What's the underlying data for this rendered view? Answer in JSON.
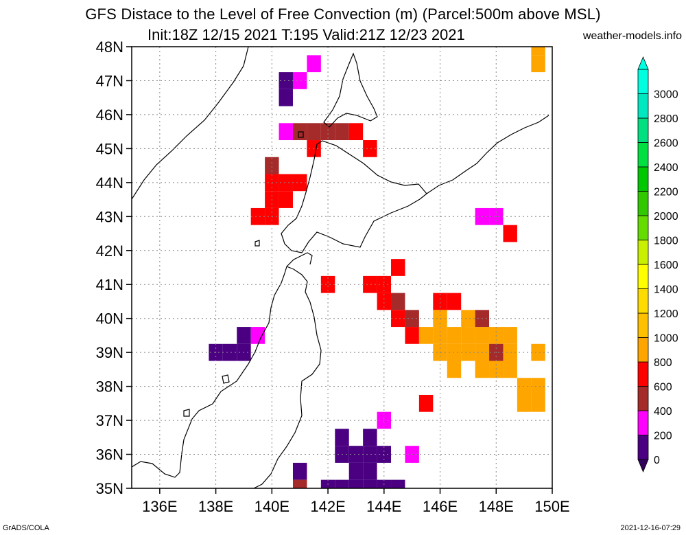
{
  "header": {
    "title_line1": "GFS Distace to the Level of Free Convection (m) (Parcel:500m above MSL)",
    "title_line2": "Init:18Z 12/15 2021 T:195 Valid:21Z 12/23 2021",
    "site": "weather-models.info"
  },
  "footer": {
    "left": "GrADS/COLA",
    "right": "2021-12-16-07:29"
  },
  "map": {
    "lon_range": [
      135,
      150
    ],
    "lat_range": [
      35,
      48
    ],
    "lon_ticks": [
      {
        "value": 136,
        "label": "136E"
      },
      {
        "value": 138,
        "label": "138E"
      },
      {
        "value": 140,
        "label": "140E"
      },
      {
        "value": 142,
        "label": "142E"
      },
      {
        "value": 144,
        "label": "144E"
      },
      {
        "value": 146,
        "label": "146E"
      },
      {
        "value": 148,
        "label": "148E"
      },
      {
        "value": 150,
        "label": "150E"
      }
    ],
    "lat_ticks": [
      {
        "value": 35,
        "label": "35N"
      },
      {
        "value": 36,
        "label": "36N"
      },
      {
        "value": 37,
        "label": "37N"
      },
      {
        "value": 38,
        "label": "38N"
      },
      {
        "value": 39,
        "label": "39N"
      },
      {
        "value": 40,
        "label": "40N"
      },
      {
        "value": 41,
        "label": "41N"
      },
      {
        "value": 42,
        "label": "42N"
      },
      {
        "value": 43,
        "label": "43N"
      },
      {
        "value": 44,
        "label": "44N"
      },
      {
        "value": 45,
        "label": "45N"
      },
      {
        "value": 46,
        "label": "46N"
      },
      {
        "value": 47,
        "label": "47N"
      },
      {
        "value": 48,
        "label": "48N"
      }
    ]
  },
  "colorbar": {
    "labels": [
      "0",
      "200",
      "400",
      "600",
      "800",
      "1000",
      "1200",
      "1400",
      "1600",
      "1800",
      "2000",
      "2200",
      "2400",
      "2600",
      "2800",
      "3000"
    ],
    "colors": [
      "#4b0082",
      "#ff00ff",
      "#a52a2a",
      "#ff0000",
      "#ffa500",
      "#ffc000",
      "#ffdc00",
      "#ffff00",
      "#c8f000",
      "#64dc00",
      "#32c800",
      "#00c800",
      "#00e040",
      "#00e080",
      "#00e8c0",
      "#00ffe0"
    ],
    "under_color": "#30005a",
    "over_color": "#00ffe0"
  },
  "chart_data": {
    "type": "heatmap",
    "variable": "distance to the level of free convection (m)",
    "lon_range": [
      135,
      150
    ],
    "lat_range": [
      35,
      48
    ],
    "cell_size_deg": 0.5,
    "cells": [
      {
        "lon": 143.0,
        "lat": 35.0,
        "v": 100
      },
      {
        "lon": 143.5,
        "lat": 35.0,
        "v": 100
      },
      {
        "lon": 144.0,
        "lat": 35.0,
        "v": 100
      },
      {
        "lon": 142.0,
        "lat": 35.0,
        "v": 100
      },
      {
        "lon": 142.5,
        "lat": 35.0,
        "v": 100
      },
      {
        "lon": 144.5,
        "lat": 35.0,
        "v": 100
      },
      {
        "lon": 143.0,
        "lat": 35.5,
        "v": 100
      },
      {
        "lon": 143.5,
        "lat": 35.5,
        "v": 0
      },
      {
        "lon": 142.5,
        "lat": 36.5,
        "v": 0
      },
      {
        "lon": 143.0,
        "lat": 36.0,
        "v": 0
      },
      {
        "lon": 143.5,
        "lat": 36.0,
        "v": 0
      },
      {
        "lon": 142.5,
        "lat": 36.0,
        "v": 100
      },
      {
        "lon": 143.5,
        "lat": 36.5,
        "v": 0
      },
      {
        "lon": 144.0,
        "lat": 36.0,
        "v": 0
      },
      {
        "lon": 141.0,
        "lat": 35.5,
        "v": 0
      },
      {
        "lon": 141.0,
        "lat": 35.0,
        "v": 500
      },
      {
        "lon": 145.0,
        "lat": 36.0,
        "v": 300
      },
      {
        "lon": 144.0,
        "lat": 37.0,
        "v": 300
      },
      {
        "lon": 145.5,
        "lat": 37.5,
        "v": 700
      },
      {
        "lon": 138.0,
        "lat": 39.0,
        "v": 0
      },
      {
        "lon": 138.5,
        "lat": 39.0,
        "v": 0
      },
      {
        "lon": 139.0,
        "lat": 39.0,
        "v": 0
      },
      {
        "lon": 139.0,
        "lat": 39.5,
        "v": 100
      },
      {
        "lon": 139.5,
        "lat": 39.5,
        "v": 300
      },
      {
        "lon": 143.5,
        "lat": 41.0,
        "v": 700
      },
      {
        "lon": 144.0,
        "lat": 41.0,
        "v": 700
      },
      {
        "lon": 144.0,
        "lat": 40.5,
        "v": 700
      },
      {
        "lon": 144.5,
        "lat": 40.5,
        "v": 500
      },
      {
        "lon": 145.0,
        "lat": 40.0,
        "v": 500
      },
      {
        "lon": 144.5,
        "lat": 40.0,
        "v": 700
      },
      {
        "lon": 145.0,
        "lat": 39.5,
        "v": 700
      },
      {
        "lon": 145.5,
        "lat": 39.5,
        "v": 900
      },
      {
        "lon": 146.0,
        "lat": 39.5,
        "v": 900
      },
      {
        "lon": 146.5,
        "lat": 39.5,
        "v": 900
      },
      {
        "lon": 147.0,
        "lat": 39.5,
        "v": 900
      },
      {
        "lon": 147.5,
        "lat": 39.5,
        "v": 900
      },
      {
        "lon": 148.0,
        "lat": 39.5,
        "v": 900
      },
      {
        "lon": 148.5,
        "lat": 39.5,
        "v": 900
      },
      {
        "lon": 146.0,
        "lat": 39.0,
        "v": 900
      },
      {
        "lon": 146.5,
        "lat": 39.0,
        "v": 900
      },
      {
        "lon": 147.0,
        "lat": 39.0,
        "v": 900
      },
      {
        "lon": 147.5,
        "lat": 39.0,
        "v": 900
      },
      {
        "lon": 148.0,
        "lat": 39.0,
        "v": 500
      },
      {
        "lon": 148.5,
        "lat": 39.0,
        "v": 900
      },
      {
        "lon": 146.5,
        "lat": 38.5,
        "v": 900
      },
      {
        "lon": 147.5,
        "lat": 38.5,
        "v": 900
      },
      {
        "lon": 148.0,
        "lat": 38.5,
        "v": 900
      },
      {
        "lon": 148.5,
        "lat": 38.5,
        "v": 900
      },
      {
        "lon": 149.0,
        "lat": 38.0,
        "v": 900
      },
      {
        "lon": 149.5,
        "lat": 38.0,
        "v": 900
      },
      {
        "lon": 149.0,
        "lat": 37.5,
        "v": 900
      },
      {
        "lon": 149.5,
        "lat": 37.5,
        "v": 900
      },
      {
        "lon": 149.5,
        "lat": 39.0,
        "v": 900
      },
      {
        "lon": 146.0,
        "lat": 40.5,
        "v": 700
      },
      {
        "lon": 146.5,
        "lat": 40.5,
        "v": 700
      },
      {
        "lon": 146.0,
        "lat": 40.0,
        "v": 900
      },
      {
        "lon": 147.0,
        "lat": 40.0,
        "v": 900
      },
      {
        "lon": 147.5,
        "lat": 40.0,
        "v": 500
      },
      {
        "lon": 144.5,
        "lat": 41.5,
        "v": 700
      },
      {
        "lon": 142.0,
        "lat": 41.0,
        "v": 700
      },
      {
        "lon": 139.5,
        "lat": 43.0,
        "v": 700
      },
      {
        "lon": 140.0,
        "lat": 43.0,
        "v": 700
      },
      {
        "lon": 140.0,
        "lat": 43.5,
        "v": 700
      },
      {
        "lon": 140.5,
        "lat": 43.5,
        "v": 700
      },
      {
        "lon": 140.0,
        "lat": 44.0,
        "v": 700
      },
      {
        "lon": 140.5,
        "lat": 44.0,
        "v": 700
      },
      {
        "lon": 141.0,
        "lat": 44.0,
        "v": 700
      },
      {
        "lon": 140.0,
        "lat": 44.5,
        "v": 500
      },
      {
        "lon": 141.5,
        "lat": 45.0,
        "v": 700
      },
      {
        "lon": 140.5,
        "lat": 45.5,
        "v": 300
      },
      {
        "lon": 141.0,
        "lat": 45.5,
        "v": 500
      },
      {
        "lon": 141.5,
        "lat": 45.5,
        "v": 500
      },
      {
        "lon": 142.0,
        "lat": 45.5,
        "v": 500
      },
      {
        "lon": 142.5,
        "lat": 45.5,
        "v": 500
      },
      {
        "lon": 143.0,
        "lat": 45.5,
        "v": 700
      },
      {
        "lon": 143.5,
        "lat": 45.0,
        "v": 700
      },
      {
        "lon": 140.5,
        "lat": 47.0,
        "v": 100
      },
      {
        "lon": 140.5,
        "lat": 46.5,
        "v": 100
      },
      {
        "lon": 141.0,
        "lat": 47.0,
        "v": 300
      },
      {
        "lon": 141.5,
        "lat": 47.5,
        "v": 300
      },
      {
        "lon": 149.5,
        "lat": 47.5,
        "v": 900
      },
      {
        "lon": 149.5,
        "lat": 48.0,
        "v": 900
      },
      {
        "lon": 147.5,
        "lat": 43.0,
        "v": 300
      },
      {
        "lon": 148.0,
        "lat": 43.0,
        "v": 300
      },
      {
        "lon": 148.5,
        "lat": 42.5,
        "v": 700
      }
    ]
  }
}
